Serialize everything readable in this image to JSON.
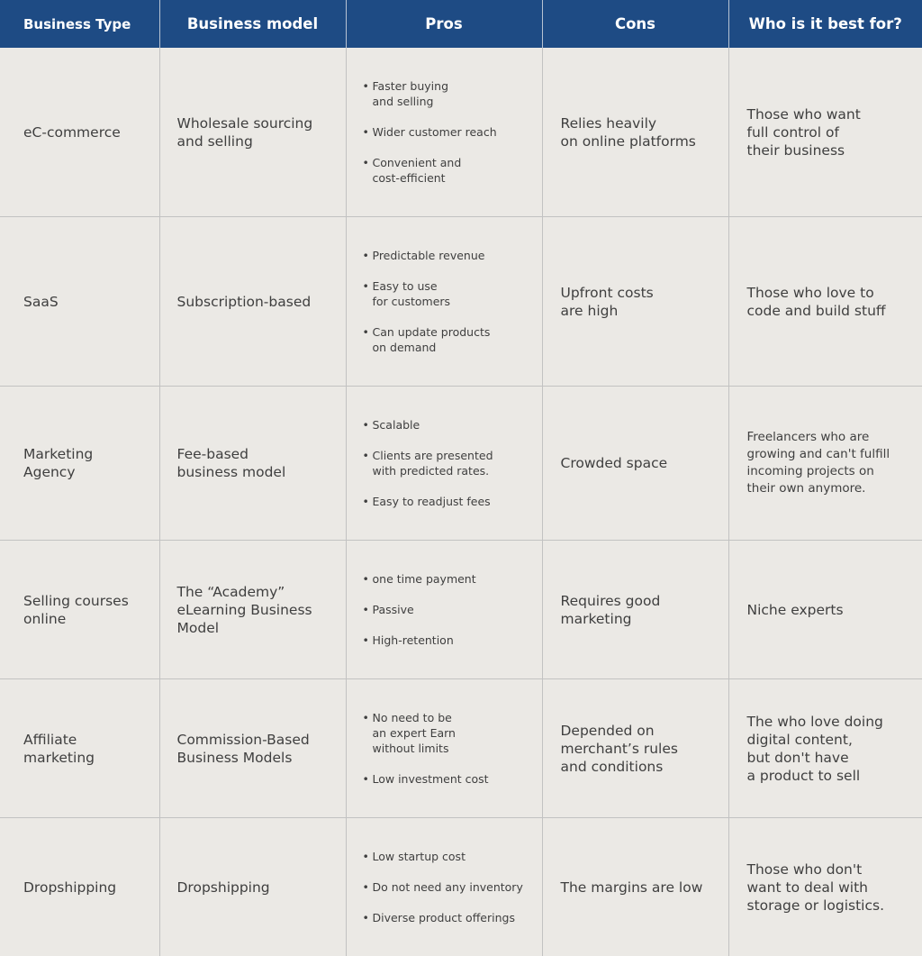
{
  "headers": [
    "Business Type",
    "Business model",
    "Pros",
    "Cons",
    "Who is it best for?"
  ],
  "rows": [
    {
      "type": "eC-commerce",
      "model": "Wholesale sourcing\nand selling",
      "pros": [
        "Faster buying\nand selling",
        "Wider customer reach",
        "Convenient and\ncost-efficient"
      ],
      "cons": "Relies heavily\non online platforms",
      "who": "Those who want\nfull control of\ntheir business"
    },
    {
      "type": "SaaS",
      "model": "Subscription-based",
      "pros": [
        "Predictable revenue",
        "Easy to use\nfor customers",
        "Can update products\non demand"
      ],
      "cons": "Upfront costs\nare high",
      "who": "Those who love to\ncode and build stuff"
    },
    {
      "type": "Marketing\nAgency",
      "model": "Fee-based\nbusiness model",
      "pros": [
        "Scalable",
        "Clients are presented\nwith predicted rates.",
        "Easy to readjust fees"
      ],
      "cons": "Crowded space",
      "who": "Freelancers who are\ngrowing and can't fulfill\nincoming projects on\ntheir own anymore."
    },
    {
      "type": "Selling courses\nonline",
      "model": "The “Academy”\neLearning Business\nModel",
      "pros": [
        "one time payment",
        "Passive",
        "High-retention"
      ],
      "cons": "Requires good\nmarketing",
      "who": "Niche experts"
    },
    {
      "type": "Affiliate\nmarketing",
      "model": "Commission-Based\nBusiness Models",
      "pros": [
        "No need to be\nan expert Earn\nwithout limits",
        "Low investment cost"
      ],
      "cons": "Depended on\nmerchant’s rules\nand conditions",
      "who": "The who love doing\ndigital content,\nbut don't have\na product to sell"
    },
    {
      "type": "Dropshipping",
      "model": "Dropshipping",
      "pros": [
        "Low startup cost",
        "Do not need any inventory",
        "Diverse product offerings"
      ],
      "cons": "The margins are low",
      "who": "Those who don't\nwant to deal with\nstorage or logistics."
    }
  ]
}
